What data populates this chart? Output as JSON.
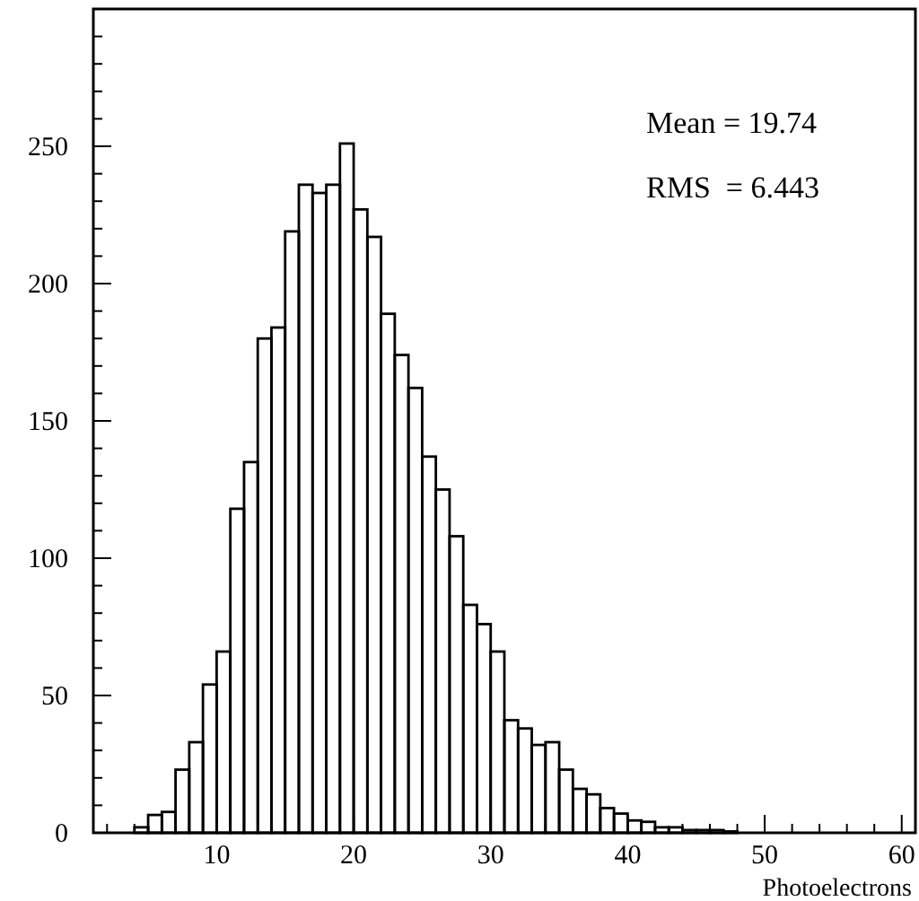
{
  "chart_data": {
    "type": "histogram",
    "xlabel": "Photoelectrons",
    "annotations": [
      "Mean = 19.74",
      "RMS  = 6.443"
    ],
    "bins": [
      4,
      5,
      6,
      7,
      8,
      9,
      10,
      11,
      12,
      13,
      14,
      15,
      16,
      17,
      18,
      19,
      20,
      21,
      22,
      23,
      24,
      25,
      26,
      27,
      28,
      29,
      30,
      31,
      32,
      33,
      34,
      35,
      36,
      37,
      38,
      39,
      40,
      41,
      42,
      43,
      44,
      45,
      46,
      47,
      48
    ],
    "values": [
      2,
      6.5,
      7.6,
      23,
      33,
      54,
      66,
      118,
      135,
      180,
      184,
      219,
      236,
      233,
      236,
      251,
      227,
      217,
      189,
      174,
      162,
      137,
      125,
      108,
      83,
      76,
      66,
      41,
      38,
      32,
      33,
      23,
      16,
      14,
      9,
      7,
      4.5,
      4,
      2,
      2,
      1,
      1,
      1,
      0.5
    ],
    "color": "#000000",
    "xlim": [
      1,
      61
    ],
    "xticks": [
      {
        "value": 2,
        "label": null
      },
      {
        "value": 4,
        "label": null
      },
      {
        "value": 6,
        "label": null
      },
      {
        "value": 8,
        "label": null
      },
      10,
      {
        "value": 12,
        "label": null
      },
      {
        "value": 14,
        "label": null
      },
      {
        "value": 16,
        "label": null
      },
      {
        "value": 18,
        "label": null
      },
      20,
      {
        "value": 22,
        "label": null
      },
      {
        "value": 24,
        "label": null
      },
      {
        "value": 26,
        "label": null
      },
      {
        "value": 28,
        "label": null
      },
      30,
      {
        "value": 32,
        "label": null
      },
      {
        "value": 34,
        "label": null
      },
      {
        "value": 36,
        "label": null
      },
      {
        "value": 38,
        "label": null
      },
      40,
      {
        "value": 42,
        "label": null
      },
      {
        "value": 44,
        "label": null
      },
      {
        "value": 46,
        "label": null
      },
      {
        "value": 48,
        "label": null
      },
      50,
      {
        "value": 52,
        "label": null
      },
      {
        "value": 54,
        "label": null
      },
      {
        "value": 56,
        "label": null
      },
      {
        "value": 58,
        "label": null
      },
      60
    ],
    "ylim": [
      0,
      300
    ],
    "yticks": [
      0,
      {
        "value": 10,
        "label": null
      },
      {
        "value": 20,
        "label": null
      },
      {
        "value": 30,
        "label": null
      },
      {
        "value": 40,
        "label": null
      },
      50,
      {
        "value": 60,
        "label": null
      },
      {
        "value": 70,
        "label": null
      },
      {
        "value": 80,
        "label": null
      },
      {
        "value": 90,
        "label": null
      },
      100,
      {
        "value": 110,
        "label": null
      },
      {
        "value": 120,
        "label": null
      },
      {
        "value": 130,
        "label": null
      },
      {
        "value": 140,
        "label": null
      },
      150,
      {
        "value": 160,
        "label": null
      },
      {
        "value": 170,
        "label": null
      },
      {
        "value": 180,
        "label": null
      },
      {
        "value": 190,
        "label": null
      },
      200,
      {
        "value": 210,
        "label": null
      },
      {
        "value": 220,
        "label": null
      },
      {
        "value": 230,
        "label": null
      },
      {
        "value": 240,
        "label": null
      },
      250,
      {
        "value": 260,
        "label": null
      },
      {
        "value": 270,
        "label": null
      },
      {
        "value": 280,
        "label": null
      },
      {
        "value": 290,
        "label": null
      }
    ],
    "grid": false
  }
}
